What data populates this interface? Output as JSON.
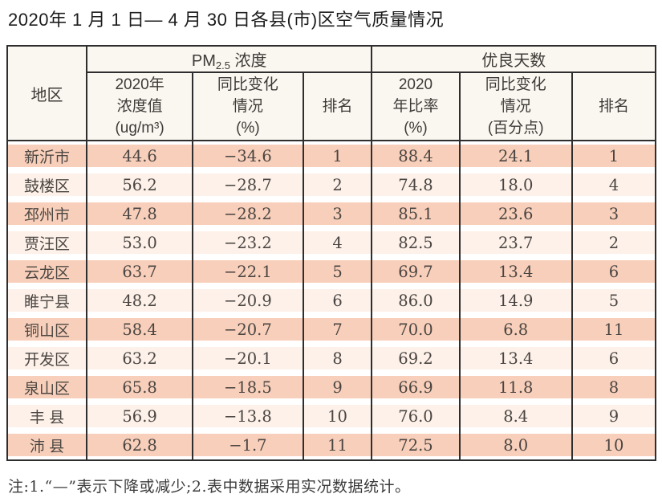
{
  "title": "2020年 1 月 1 日— 4 月 30 日各县(市)区空气质量情况",
  "table": {
    "region_header": "地区",
    "pm_group": {
      "prefix": "PM",
      "sub": "2.5",
      "suffix": " 浓度"
    },
    "good_group": {
      "label": "优良天数"
    },
    "subheaders": [
      [
        "2020年",
        "浓度值",
        "(ug/m³)"
      ],
      [
        "同比变化",
        "情况",
        "(%)"
      ],
      [
        "排名"
      ],
      [
        "2020",
        "年比率",
        "(%)"
      ],
      [
        "同比变化",
        "情况",
        "(百分点)"
      ],
      [
        "排名"
      ]
    ],
    "rows": [
      [
        "新沂市",
        "44.6",
        "−34.6",
        "1",
        "88.4",
        "24.1",
        "1"
      ],
      [
        "鼓楼区",
        "56.2",
        "−28.7",
        "2",
        "74.8",
        "18.0",
        "4"
      ],
      [
        "邳州市",
        "47.8",
        "−28.2",
        "3",
        "85.1",
        "23.6",
        "3"
      ],
      [
        "贾汪区",
        "53.0",
        "−23.2",
        "4",
        "82.5",
        "23.7",
        "2"
      ],
      [
        "云龙区",
        "63.7",
        "−22.1",
        "5",
        "69.7",
        "13.4",
        "6"
      ],
      [
        "睢宁县",
        "48.2",
        "−20.9",
        "6",
        "86.0",
        "14.9",
        "5"
      ],
      [
        "铜山区",
        "58.4",
        "−20.7",
        "7",
        "70.0",
        "6.8",
        "11"
      ],
      [
        "开发区",
        "63.2",
        "−20.1",
        "8",
        "69.2",
        "13.4",
        "6"
      ],
      [
        "泉山区",
        "65.8",
        "−18.5",
        "9",
        "66.9",
        "11.8",
        "8"
      ],
      [
        "丰 县",
        "56.9",
        "−13.8",
        "10",
        "76.0",
        "8.4",
        "9"
      ],
      [
        "沛 县",
        "62.8",
        "−1.7",
        "11",
        "72.5",
        "8.0",
        "10"
      ]
    ]
  },
  "note": "注:1.“—”表示下降或减少;2.表中数据采用实况数据统计。",
  "colors": {
    "row_odd": "#f8cfba",
    "row_even": "#fdf1e9",
    "header_bg": "#faf6f0",
    "grid_border": "#2e2e2e"
  }
}
